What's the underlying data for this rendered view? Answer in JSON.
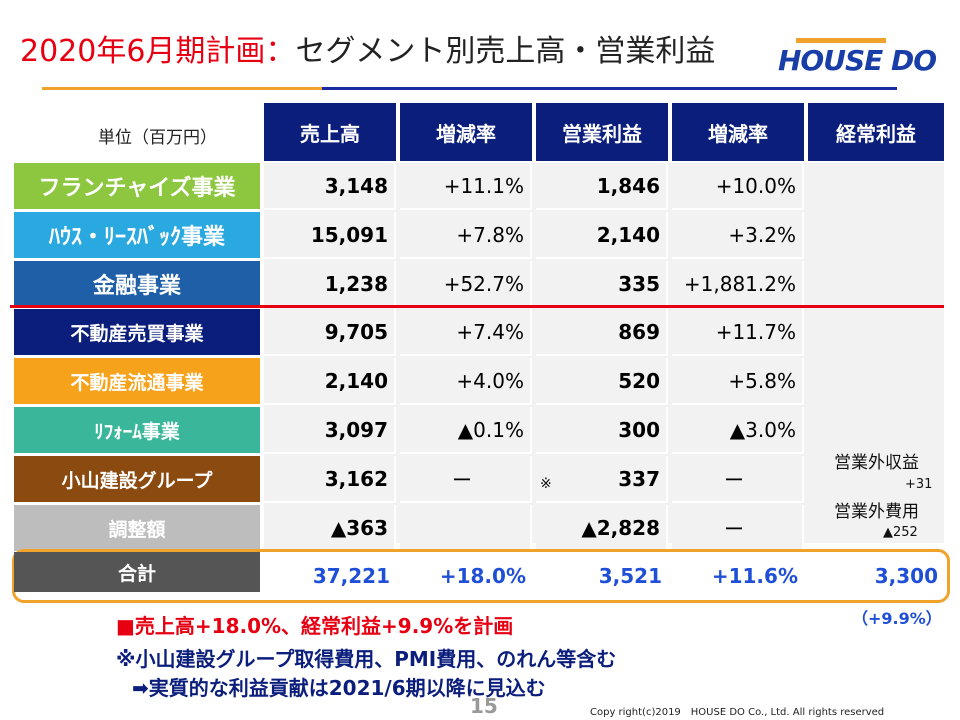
{
  "title": {
    "part1": "2020年6月期計画：",
    "part2": "セグメント別売上高・営業利益"
  },
  "logo": "HOUSE DO",
  "unit_label": "単位（百万円）",
  "headers": [
    "売上高",
    "増減率",
    "営業利益",
    "増減率",
    "経常利益"
  ],
  "rows": [
    {
      "label": "フランチャイズ事業",
      "sales": "3,148",
      "sales_rate": "+11.1%",
      "op": "1,846",
      "op_rate": "+10.0%",
      "color": "#8dc63f"
    },
    {
      "label": "ﾊｳｽ・ﾘｰｽﾊﾞｯｸ事業",
      "sales": "15,091",
      "sales_rate": "+7.8%",
      "op": "2,140",
      "op_rate": "+3.2%",
      "color": "#2aa8e0"
    },
    {
      "label": "金融事業",
      "sales": "1,238",
      "sales_rate": "+52.7%",
      "op": "335",
      "op_rate": "+1,881.2%",
      "color": "#1f5fa8"
    },
    {
      "label": "不動産売買事業",
      "sales": "9,705",
      "sales_rate": "+7.4%",
      "op": "869",
      "op_rate": "+11.7%",
      "color": "#0b1e7c"
    },
    {
      "label": "不動産流通事業",
      "sales": "2,140",
      "sales_rate": "+4.0%",
      "op": "520",
      "op_rate": "+5.8%",
      "color": "#f7a21b"
    },
    {
      "label": "ﾘﾌｫｰﾑ事業",
      "sales": "3,097",
      "sales_rate": "▲0.1%",
      "op": "300",
      "op_rate": "▲3.0%",
      "color": "#3ab79a"
    },
    {
      "label": "小山建設グループ",
      "sales": "3,162",
      "sales_rate": "ー",
      "op": "337",
      "op_rate": "ー",
      "op_mark": "※",
      "color": "#8b4a10"
    },
    {
      "label": "調整額",
      "sales": "▲363",
      "sales_rate": "",
      "op": "▲2,828",
      "op_rate": "ー",
      "color": "#bdbdbd"
    }
  ],
  "total": {
    "label": "合計",
    "sales": "37,221",
    "sales_rate": "+18.0%",
    "op": "3,521",
    "op_rate": "+11.6%",
    "ordinary": "3,300",
    "ordinary_rate": "（+9.9%）",
    "color": "#555555"
  },
  "nonop": {
    "income_label": "営業外収益",
    "income": "+31",
    "expense_label": "営業外費用",
    "expense": "▲252"
  },
  "footnotes": {
    "line1": "■売上高+18.0%、経常利益+9.9%を計画",
    "line2": "※小山建設グループ取得費用、PMI費用、のれん等含む",
    "line3": "➡実質的な利益貢献は2021/6期以降に見込む"
  },
  "page_number": "15",
  "copyright": "Copy right(c)2019　HOUSE DO Co., Ltd. All rights reserved"
}
